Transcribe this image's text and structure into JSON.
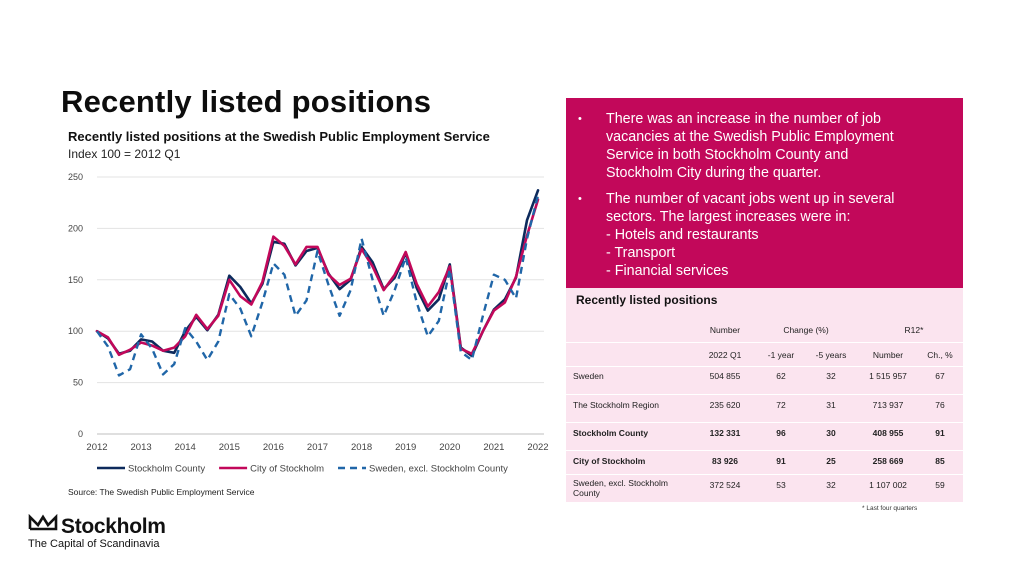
{
  "page": {
    "title": "Recently listed positions",
    "source": "Source: The Swedish Public Employment Service",
    "footnote": "* Last four quarters",
    "logo": {
      "name": "Stockholm",
      "tagline": "The Capital of Scandinavia"
    }
  },
  "bullets": [
    "There was an increase in the number of job\nvacancies at the Swedish Public Employment\nService in both Stockholm County and\nStockholm City during the quarter.",
    "The number of vacant jobs went up in several\nsectors. The largest increases were in:\n- Hotels and restaurants\n- Transport\n- Financial services"
  ],
  "table": {
    "title": "Recently listed positions",
    "group_headers": [
      "Number",
      "Change (%)",
      "R12*"
    ],
    "sub_headers": [
      "2022 Q1",
      "-1 year",
      "-5 years",
      "Number",
      "Ch., %"
    ],
    "rows": [
      {
        "label": "Sweden",
        "values": [
          "504 855",
          "62",
          "32",
          "1 515 957",
          "67"
        ],
        "bold": false
      },
      {
        "label": "The Stockholm Region",
        "values": [
          "235 620",
          "72",
          "31",
          "713 937",
          "76"
        ],
        "bold": false
      },
      {
        "label": "Stockholm County",
        "values": [
          "132 331",
          "96",
          "30",
          "408 955",
          "91"
        ],
        "bold": true
      },
      {
        "label": "City of Stockholm",
        "values": [
          "83 926",
          "91",
          "25",
          "258 669",
          "85"
        ],
        "bold": true
      },
      {
        "label": "Sweden, excl. Stockholm County",
        "values": [
          "372 524",
          "53",
          "32",
          "1 107 002",
          "59"
        ],
        "bold": false
      }
    ]
  },
  "chart_data": {
    "type": "line",
    "title": "Recently listed positions at the Swedish Public Employment Service",
    "subtitle": "Index 100 = 2012 Q1",
    "xlabel": "",
    "ylabel": "",
    "ylim": [
      0,
      250
    ],
    "yticks": [
      0,
      50,
      100,
      150,
      200,
      250
    ],
    "xticks": [
      "2012",
      "2013",
      "2014",
      "2015",
      "2016",
      "2017",
      "2018",
      "2019",
      "2020",
      "2021",
      "2022"
    ],
    "x_start": 2012,
    "x_step": 0.25,
    "grid": true,
    "legend_position": "bottom",
    "series": [
      {
        "name": "Stockholm County",
        "color": "#0d2a5c",
        "dash": "solid",
        "values": [
          100,
          93,
          78,
          81,
          92,
          90,
          81,
          79,
          100,
          114,
          101,
          116,
          154,
          143,
          127,
          146,
          187,
          185,
          164,
          178,
          181,
          156,
          141,
          150,
          182,
          167,
          141,
          152,
          176,
          142,
          120,
          131,
          165,
          84,
          76,
          100,
          121,
          131,
          152,
          208,
          237
        ]
      },
      {
        "name": "City of Stockholm",
        "color": "#c2085a",
        "dash": "solid",
        "values": [
          100,
          94,
          77,
          82,
          89,
          86,
          81,
          84,
          95,
          116,
          102,
          115,
          150,
          134,
          126,
          148,
          192,
          183,
          165,
          182,
          182,
          155,
          145,
          151,
          180,
          163,
          140,
          155,
          177,
          146,
          124,
          138,
          163,
          83,
          78,
          100,
          120,
          128,
          153,
          193,
          228
        ]
      },
      {
        "name": "Sweden, excl. Stockholm County",
        "color": "#2066a8",
        "dash": "dashed",
        "values": [
          100,
          85,
          57,
          63,
          97,
          83,
          58,
          68,
          103,
          90,
          72,
          90,
          136,
          122,
          95,
          128,
          166,
          155,
          115,
          130,
          178,
          145,
          115,
          140,
          190,
          150,
          115,
          140,
          172,
          128,
          95,
          110,
          160,
          80,
          72,
          115,
          155,
          150,
          132,
          190,
          232
        ]
      }
    ]
  }
}
